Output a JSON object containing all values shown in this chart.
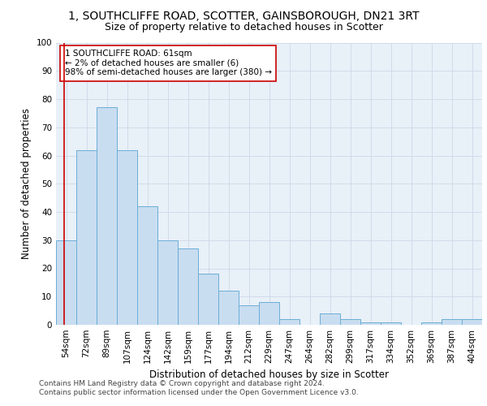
{
  "title_line1": "1, SOUTHCLIFFE ROAD, SCOTTER, GAINSBOROUGH, DN21 3RT",
  "title_line2": "Size of property relative to detached houses in Scotter",
  "xlabel": "Distribution of detached houses by size in Scotter",
  "ylabel": "Number of detached properties",
  "bar_color": "#c9ddf0",
  "bar_edge_color": "#6aaed6",
  "categories": [
    "54sqm",
    "72sqm",
    "89sqm",
    "107sqm",
    "124sqm",
    "142sqm",
    "159sqm",
    "177sqm",
    "194sqm",
    "212sqm",
    "229sqm",
    "247sqm",
    "264sqm",
    "282sqm",
    "299sqm",
    "317sqm",
    "334sqm",
    "352sqm",
    "369sqm",
    "387sqm",
    "404sqm"
  ],
  "values": [
    30,
    62,
    77,
    62,
    42,
    30,
    27,
    18,
    12,
    7,
    8,
    2,
    0,
    4,
    2,
    1,
    1,
    0,
    1,
    2,
    2
  ],
  "ylim": [
    0,
    100
  ],
  "yticks": [
    0,
    10,
    20,
    30,
    40,
    50,
    60,
    70,
    80,
    90,
    100
  ],
  "annotation_text": "1 SOUTHCLIFFE ROAD: 61sqm\n← 2% of detached houses are smaller (6)\n98% of semi-detached houses are larger (380) →",
  "vline_color": "#cc0000",
  "annotation_box_color": "#ffffff",
  "annotation_box_edge": "#cc0000",
  "grid_color": "#d0d8e8",
  "background_color": "#e8f0f8",
  "footer_line1": "Contains HM Land Registry data © Crown copyright and database right 2024.",
  "footer_line2": "Contains public sector information licensed under the Open Government Licence v3.0.",
  "title_fontsize": 10,
  "subtitle_fontsize": 9,
  "axis_label_fontsize": 8.5,
  "tick_fontsize": 7.5,
  "annotation_fontsize": 7.5,
  "footer_fontsize": 6.5
}
